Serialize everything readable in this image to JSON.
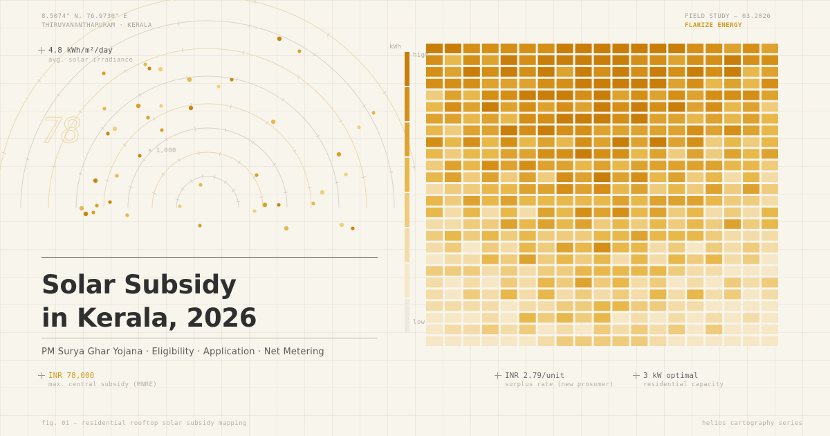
{
  "coords": {
    "line1": "8.5074° N, 76.9730° E",
    "line2": "THIRUVANANTHAPURAM · KERALA"
  },
  "study": {
    "line1": "FIELD STUDY — 03.2026",
    "line2": "FLARIZE ENERGY"
  },
  "stat_top": {
    "value": "4.8 kWh/m²/day",
    "label": "avg. solar irradiance"
  },
  "radar": {
    "big_number": "78",
    "scale_label": "× 1,000"
  },
  "legend": {
    "unit": "kWh",
    "high": "high",
    "low": "low"
  },
  "title": {
    "line1": "Solar Subsidy",
    "line2": "in Kerala, 2026"
  },
  "subtitle": "PM Surya Ghar Yojana · Eligibility · Application · Net Metering",
  "stats": [
    {
      "value": "INR 78,000",
      "label": "max. central subsidy (MNRE)"
    },
    {
      "value": "INR 2.79/unit",
      "label": "surplus rate (new prosumer)"
    },
    {
      "value": "3 kW optimal",
      "label": "residential capacity"
    }
  ],
  "footer": {
    "left": "fig. 01 — residential rooftop solar subsidy mapping",
    "right": "helios cartography series"
  },
  "colors": {
    "background": "#f8f5ed",
    "accent": "#d29a1c",
    "dark": "#c47d0a",
    "light": "#f6e8c6"
  }
}
